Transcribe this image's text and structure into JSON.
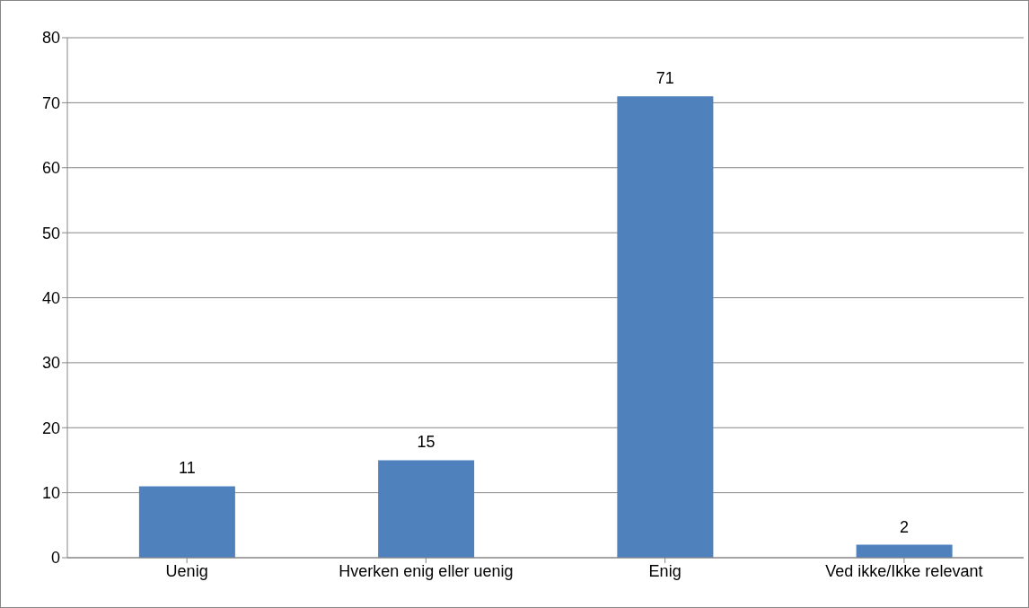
{
  "chart_data": {
    "type": "bar",
    "categories": [
      "Uenig",
      "Hverken enig eller uenig",
      "Enig",
      "Ved ikke/Ikke relevant"
    ],
    "values": [
      11,
      15,
      71,
      2
    ],
    "color": "#4f81bd",
    "ylim": [
      0,
      80
    ],
    "yticks": [
      0,
      10,
      20,
      30,
      40,
      50,
      60,
      70,
      80
    ],
    "grid": "y",
    "data_labels": true,
    "legend": false
  }
}
